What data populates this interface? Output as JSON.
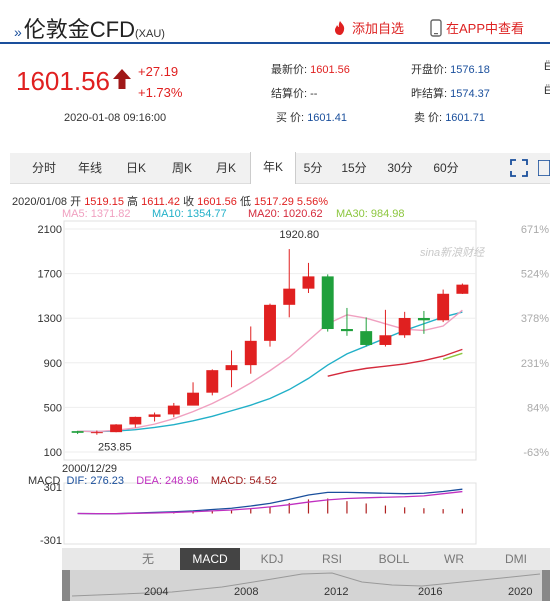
{
  "header": {
    "title": "伦敦金CFD",
    "code": "(XAU)",
    "add_watch": "添加自选",
    "app_view": "在APP中查看"
  },
  "quote": {
    "price": "1601.56",
    "change": "+27.19",
    "change_pct": "+1.73%",
    "datetime": "2020-01-08 09:16:00",
    "fields": [
      {
        "label": "最新价:",
        "value": "1601.56",
        "color": "#e02020"
      },
      {
        "label": "开盘价:",
        "value": "1576.18",
        "color": "#1a4f9c"
      },
      {
        "label": "结算价:",
        "value": "--",
        "color": "#333333"
      },
      {
        "label": "昨结算:",
        "value": "1574.37",
        "color": "#1a4f9c"
      },
      {
        "label": "买  价:",
        "value": "1601.41",
        "color": "#1a4f9c"
      },
      {
        "label": "卖  价:",
        "value": "1601.71",
        "color": "#1a4f9c"
      }
    ]
  },
  "tabs": [
    "分时",
    "年线",
    "日K",
    "周K",
    "月K",
    "年K",
    "5分",
    "15分",
    "30分",
    "60分"
  ],
  "active_tab": "年K",
  "info": {
    "date": "2020/01/08",
    "open_label": "开",
    "open": "1519.15",
    "high_label": "高",
    "high": "1611.42",
    "close_label": "收",
    "close": "1601.56",
    "low_label": "低",
    "low": "1517.29",
    "pct": "5.56%"
  },
  "ma": [
    {
      "label": "MA5:",
      "value": "1371.82",
      "color": "#f0a0c0"
    },
    {
      "label": "MA10:",
      "value": "1354.77",
      "color": "#22b0c8"
    },
    {
      "label": "MA20:",
      "value": "1020.62",
      "color": "#d42a3c"
    },
    {
      "label": "MA30:",
      "value": "984.98",
      "color": "#8cc63e"
    }
  ],
  "watermark": "sina新浪财经",
  "macd_info": {
    "name": "MACD",
    "dif_label": "DIF:",
    "dif": "276.23",
    "dea_label": "DEA:",
    "dea": "248.96",
    "macd_label": "MACD:",
    "macd": "54.52"
  },
  "indicator_tabs": [
    "无",
    "MACD",
    "KDJ",
    "RSI",
    "BOLL",
    "WR",
    "DMI"
  ],
  "active_indicator": "MACD",
  "nav_years": [
    "2004",
    "2008",
    "2012",
    "2016",
    "2020"
  ],
  "colors": {
    "up": "#e02020",
    "down": "#1fa03c",
    "brand": "#1a4f9c"
  },
  "chart_data": {
    "type": "candlestick",
    "x": [
      "2000",
      "2001",
      "2002",
      "2003",
      "2004",
      "2005",
      "2006",
      "2007",
      "2008",
      "2009",
      "2010",
      "2011",
      "2012",
      "2013",
      "2014",
      "2015",
      "2016",
      "2017",
      "2018",
      "2019",
      "2020"
    ],
    "open": [
      287,
      272,
      278,
      347,
      415,
      437,
      516,
      632,
      834,
      879,
      1097,
      1420,
      1565,
      1675,
      1203,
      1184,
      1060,
      1147,
      1302,
      1281,
      1519
    ],
    "high": [
      290,
      293,
      350,
      417,
      454,
      540,
      725,
      841,
      1011,
      1226,
      1431,
      1920,
      1796,
      1693,
      1392,
      1307,
      1375,
      1357,
      1365,
      1557,
      1611
    ],
    "low": [
      261,
      255,
      277,
      319,
      374,
      412,
      524,
      608,
      681,
      802,
      1045,
      1308,
      1526,
      1180,
      1142,
      1046,
      1046,
      1124,
      1160,
      1265,
      1517
    ],
    "close": [
      272,
      278,
      347,
      415,
      437,
      516,
      632,
      834,
      879,
      1097,
      1420,
      1565,
      1675,
      1203,
      1184,
      1060,
      1147,
      1302,
      1281,
      1519,
      1601
    ],
    "ma5": [
      287,
      283,
      295,
      316,
      350,
      399,
      462,
      535,
      621,
      720,
      830,
      950,
      1100,
      1250,
      1330,
      1300,
      1250,
      1200,
      1190,
      1230,
      1371.82
    ],
    "ma10": [
      287,
      283,
      288,
      300,
      320,
      345,
      380,
      420,
      470,
      520,
      580,
      660,
      760,
      880,
      980,
      1050,
      1120,
      1190,
      1250,
      1310,
      1354.77
    ],
    "ma20": [
      null,
      null,
      null,
      null,
      null,
      null,
      null,
      null,
      null,
      null,
      null,
      null,
      null,
      780,
      820,
      850,
      870,
      890,
      920,
      960,
      1020.62
    ],
    "ma30": [
      null,
      null,
      null,
      null,
      null,
      null,
      null,
      null,
      null,
      null,
      null,
      null,
      null,
      null,
      null,
      null,
      null,
      null,
      null,
      930,
      984.98
    ],
    "y_ticks": [
      100,
      500,
      900,
      1300,
      1700,
      2100
    ],
    "y_right_ticks": [
      "671%",
      "524%",
      "378%",
      "231%",
      "84%",
      "-63%"
    ],
    "ylim": [
      100,
      2100
    ],
    "max_label": "1920.80",
    "min_label": "253.85",
    "min_date": "2000/12/29",
    "macd": {
      "y_ticks": [
        "301",
        "-301"
      ],
      "ylim": [
        -301,
        301
      ],
      "dif": [
        0,
        -2,
        -2,
        5,
        12,
        20,
        30,
        45,
        60,
        85,
        115,
        160,
        210,
        240,
        240,
        235,
        230,
        225,
        230,
        250,
        276.23
      ],
      "dea": [
        0,
        -1,
        -1,
        2,
        6,
        12,
        20,
        30,
        40,
        55,
        75,
        100,
        130,
        155,
        170,
        178,
        185,
        190,
        200,
        225,
        248.96
      ],
      "hist": [
        0,
        -2,
        -2,
        6,
        12,
        16,
        20,
        30,
        40,
        60,
        80,
        120,
        160,
        170,
        140,
        114,
        90,
        70,
        60,
        50,
        54.52
      ]
    }
  }
}
